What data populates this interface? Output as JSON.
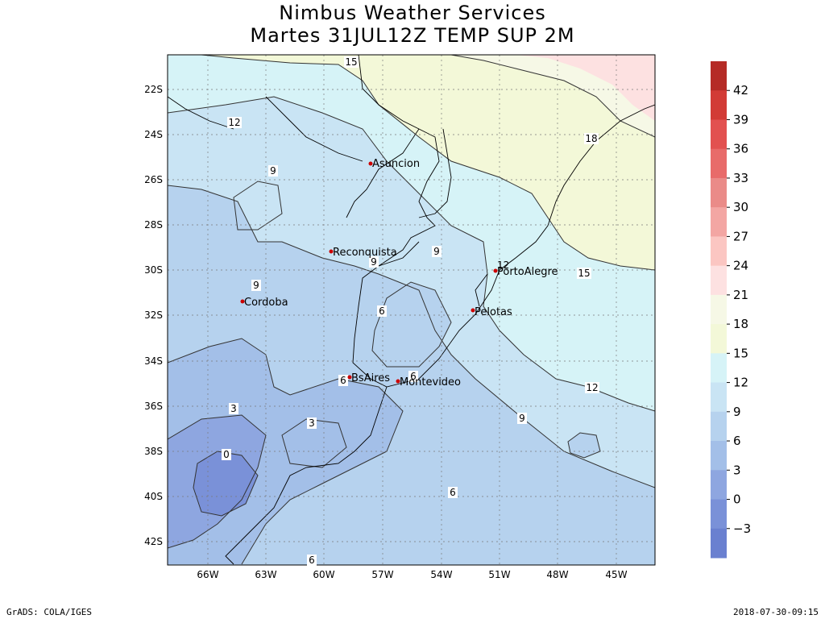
{
  "title": {
    "line1": "Nimbus Weather Services",
    "line2": "Martes 31JUL12Z TEMP SUP 2M"
  },
  "map": {
    "lon_range": [
      -68,
      -43
    ],
    "lat_range": [
      -43.5,
      -20
    ],
    "lon_ticks": [
      "66W",
      "63W",
      "60W",
      "57W",
      "54W",
      "51W",
      "48W",
      "45W"
    ],
    "lat_ticks": [
      "22S",
      "24S",
      "26S",
      "28S",
      "30S",
      "32S",
      "34S",
      "36S",
      "38S",
      "40S",
      "42S"
    ],
    "contour_labels": [
      "15",
      "12",
      "18",
      "9",
      "9",
      "9",
      "9",
      "15",
      "12",
      "6",
      "6",
      "6",
      "3",
      "3",
      "0",
      "9",
      "6",
      "6"
    ],
    "cities": [
      {
        "name": "Asuncion",
        "lon": -57.6,
        "lat": -25.3
      },
      {
        "name": "Reconquista",
        "lon": -59.7,
        "lat": -29.15
      },
      {
        "name": "Cordoba",
        "lon": -64.2,
        "lat": -31.4
      },
      {
        "name": "PortoAlegre",
        "lon": -51.2,
        "lat": -30.0
      },
      {
        "name": "Pelotas",
        "lon": -52.3,
        "lat": -31.75
      },
      {
        "name": "BsAires",
        "lon": -58.4,
        "lat": -34.6
      },
      {
        "name": "Montevideo",
        "lon": -56.2,
        "lat": -34.9
      }
    ],
    "extra_marker_label": "12"
  },
  "colorbar": {
    "labels": [
      "42",
      "39",
      "36",
      "33",
      "30",
      "27",
      "24",
      "21",
      "18",
      "15",
      "12",
      "9",
      "6",
      "3",
      "0",
      "-3"
    ],
    "colors": [
      "#b52b26",
      "#d23b36",
      "#e25150",
      "#e86b6a",
      "#ea8b88",
      "#f3a6a3",
      "#fbc6c2",
      "#fde1e1",
      "#f6f8e6",
      "#f3f8d8",
      "#d6f3f7",
      "#c9e4f4",
      "#b6d2ee",
      "#a3bfe8",
      "#8ea6e0",
      "#7a91d8",
      "#6a80d0"
    ]
  },
  "footer": {
    "left": "GrADS: COLA/IGES",
    "right": "2018-07-30-09:15"
  }
}
